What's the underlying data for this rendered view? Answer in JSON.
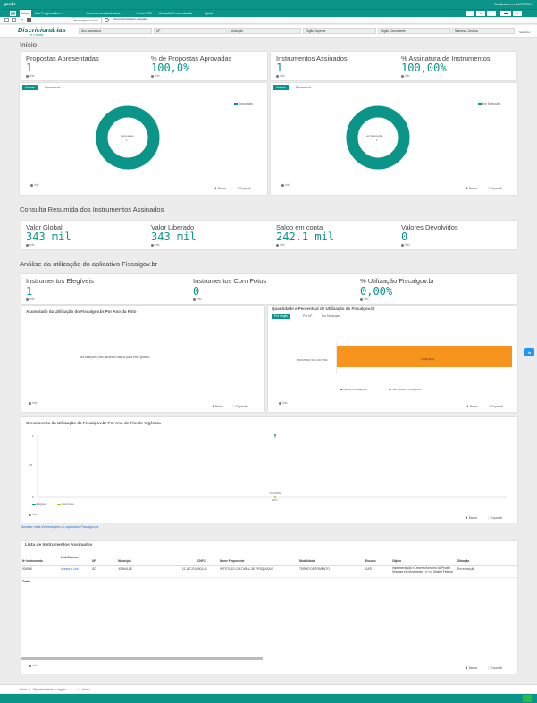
{
  "app": {
    "name": "gov.br",
    "updated": "Atualizado em: 19/07/2024"
  },
  "nav": {
    "menu_items": [
      "Início",
      "Ano Programático ▾",
      "Instrumentos Assinados ▾",
      "Ponto FTD",
      "Consulta Personalizada",
      "Ajuda"
    ],
    "right_buttons": [
      "‹",
      "✕",
      "›",
      "▬",
      "▾"
    ]
  },
  "tabs": [
    {
      "label": "Painel Parlamentar",
      "active": true
    },
    {
      "label": "Painel Administrativo e Gestão",
      "active": false
    }
  ],
  "logo": {
    "line1": "Discricionárias",
    "line2": "e Legais"
  },
  "filters": [
    "Ano Assinatura",
    "UF",
    "Município",
    "Órgão Superior",
    "Órgão Concedente",
    "Natureza Jurídica"
  ],
  "filters_link": "Seleções",
  "page_title": "Início",
  "kpis_top": [
    {
      "label": "Propostas Apresentadas",
      "value": "1"
    },
    {
      "label": "% de Propostas Aprovadas",
      "value": "100,0%"
    },
    {
      "label": "Instrumentos Assinados",
      "value": "1"
    },
    {
      "label": "% Assinatura de Instrumentos",
      "value": "100,00%"
    }
  ],
  "info_label": "Info",
  "donut_tabs": [
    "Valores",
    "Percentuais"
  ],
  "donuts": [
    {
      "legend": "Aprovadas",
      "center": "Aprovadas",
      "center_value": "1"
    },
    {
      "legend": "Em Execução",
      "center": "em Execução",
      "center_value": "1"
    }
  ],
  "actions": {
    "export": "Baixar",
    "expand": "Expandir"
  },
  "section2_title": "Consulta Resumida dos Instrumentos Assinados",
  "kpis_mid": [
    {
      "label": "Valor Global",
      "value": "343 mil"
    },
    {
      "label": "Valor Liberado",
      "value": "343 mil"
    },
    {
      "label": "Saldo em conta",
      "value": "242.1 mil"
    },
    {
      "label": "Valores Devolvidos",
      "value": "0"
    }
  ],
  "section3_title": "Análise da utilização do aplicativo Fiscalgov.br",
  "kpis_fiscal": [
    {
      "label": "Instrumentos Elegíveis",
      "value": "1"
    },
    {
      "label": "Instrumentos Com Fotos",
      "value": "0"
    },
    {
      "label": "% Utilização Fiscalgov.br",
      "value": "0,00%"
    }
  ],
  "chart_left": {
    "title": "Acumulado da Utilização do Fiscalgov.br Por Ano da Foto",
    "empty_message": "As seleções não geraram dados para este gráfico."
  },
  "chart_right": {
    "title": "Quantidade e Percentual de Utilização do Fiscalgov.br",
    "tabs": [
      "Por Órgão",
      "Por UF",
      "Por Município"
    ]
  },
  "chart_bottom": {
    "title": "Crescimento da Utilização do Fiscalgov.br Por Ano de Fim de Vigência"
  },
  "info_link": "Acesse mais informações do aplicativo Fiscalgov.br",
  "list": {
    "title": "Lista de Instrumentos Assinados",
    "columns": [
      "Nº Instrumento",
      "Link Externo",
      "UF",
      "Município",
      "CNPJ",
      "Nome Proponente",
      "Modalidade",
      "Escopo",
      "Objeto",
      "Situação"
    ],
    "rows": [
      [
        "924986",
        "Acesse o Link",
        "SC",
        "JOINVILLE",
        "11.117.211/0001-01",
        "INSTITUTO CULTURAL DE PESQUISA E",
        "TERMO DE FOMENTO",
        "GATI",
        "Implementação e Desenvolvimento do Projeto Sessões em Movimento - n.º no Distrito Federal",
        "Em execução"
      ]
    ],
    "total_label": "Totais"
  },
  "breadcrumb": [
    "Início",
    "Discricionárias e Legais",
    "Início"
  ],
  "chart_data": [
    {
      "type": "pie",
      "title": "",
      "categories": [
        "Aprovadas"
      ],
      "values": [
        1
      ],
      "colors": [
        "#0b9488"
      ]
    },
    {
      "type": "pie",
      "title": "",
      "categories": [
        "Em Execução"
      ],
      "values": [
        1
      ],
      "colors": [
        "#0b9488"
      ]
    },
    {
      "type": "bar",
      "title": "Quantidade e Percentual de Utilização do Fiscalgov.br",
      "orientation": "horizontal",
      "categories": [
        "MINISTERIO DA CULTURA"
      ],
      "series": [
        {
          "name": "Utilizou o Fiscalgov.br",
          "values": [
            0
          ],
          "color": "#0b9488"
        },
        {
          "name": "Não Utilizou o Fiscalgov.br",
          "values": [
            100
          ],
          "color": "#f7941d"
        }
      ],
      "bar_labels": [
        "0 (100,00%)"
      ]
    },
    {
      "type": "line",
      "title": "Crescimento da Utilização do Fiscalgov.br Por Ano de Fim de Vigência",
      "x": [
        "2027"
      ],
      "yticks": [
        "1",
        "0,5",
        "0"
      ],
      "ylim": [
        0,
        1
      ],
      "series": [
        {
          "name": "Elegíveis",
          "values": [
            1
          ],
          "color": "#0b9488"
        },
        {
          "name": "Com Fotos",
          "values": [
            0
          ],
          "color": "#9acd32"
        }
      ],
      "point_label": "0 (0,00%)"
    }
  ]
}
